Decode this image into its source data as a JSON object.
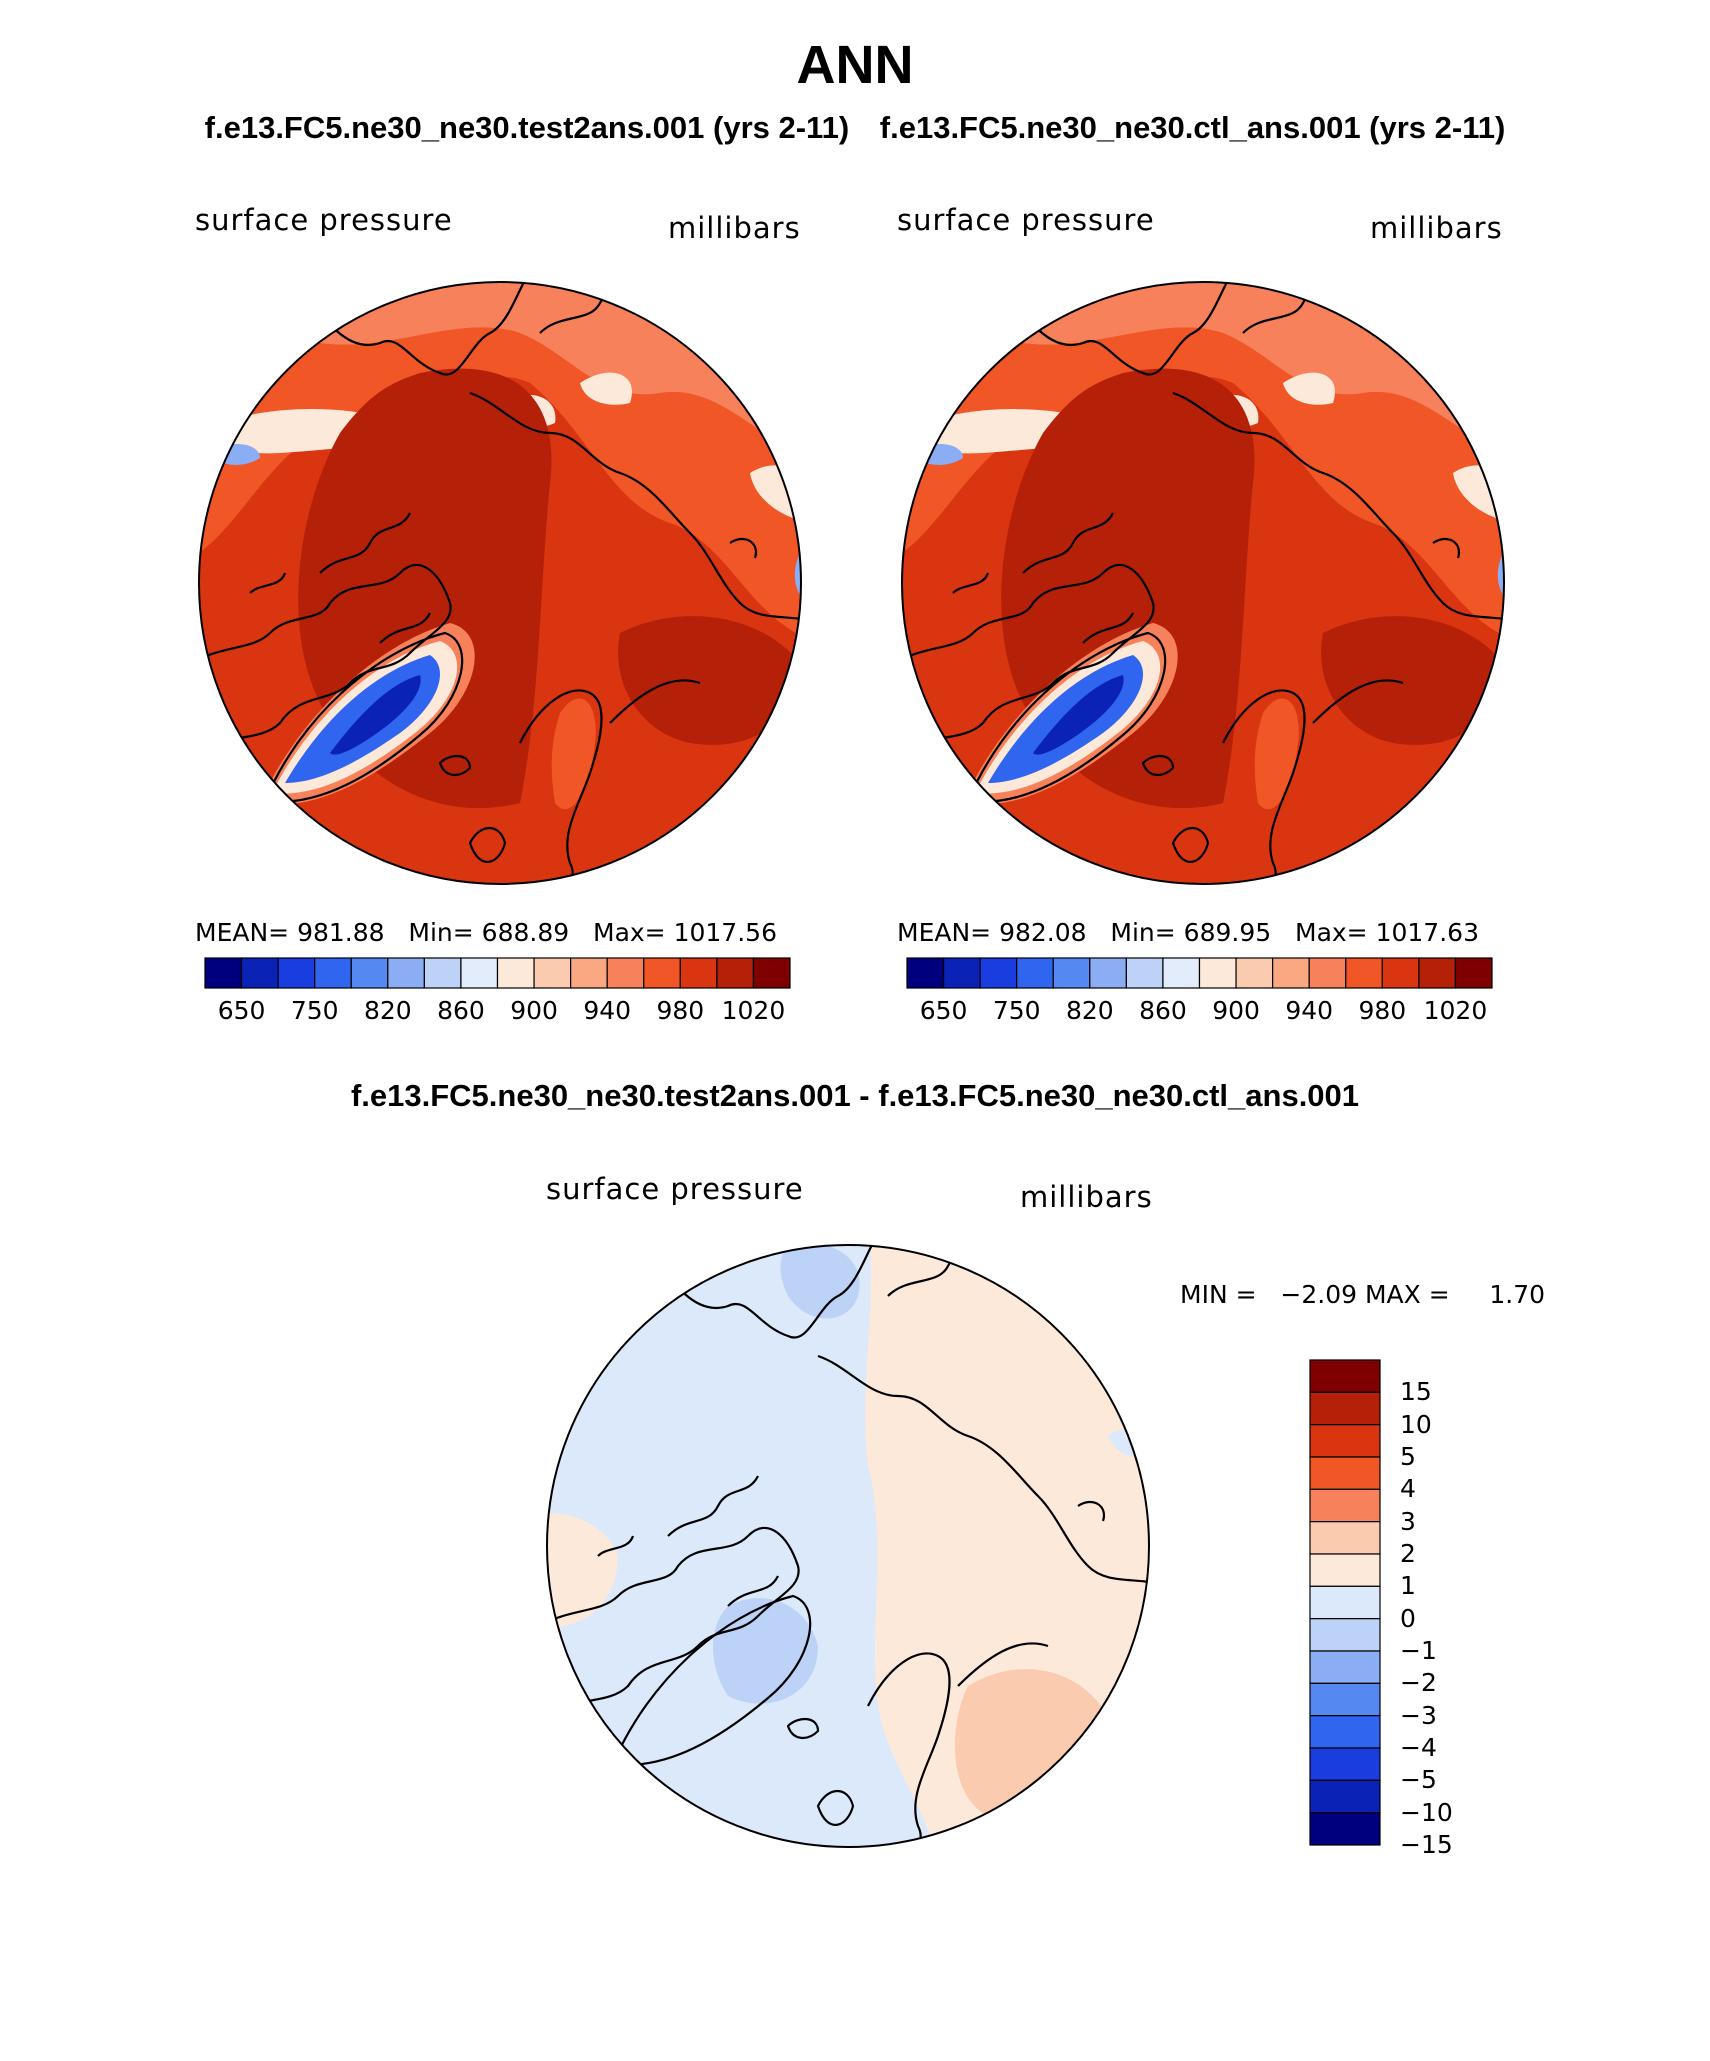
{
  "title": "ANN",
  "case_titles": {
    "test": "f.e13.FC5.ne30_ne30.test2ans.001 (yrs 2-11)",
    "control": "f.e13.FC5.ne30_ne30.ctl_ans.001 (yrs 2-11)"
  },
  "panels": [
    {
      "variable": "surface pressure",
      "units": "millibars",
      "stats": {
        "mean_label": "MEAN=",
        "mean": "981.88",
        "min_label": "Min=",
        "min": "688.89",
        "max_label": "Max=",
        "max": "1017.56"
      }
    },
    {
      "variable": "surface pressure",
      "units": "millibars",
      "stats": {
        "mean_label": "MEAN=",
        "mean": "982.08",
        "min_label": "Min=",
        "min": "689.95",
        "max_label": "Max=",
        "max": "1017.63"
      }
    }
  ],
  "abs_colorbar": {
    "colors": [
      "#00007f",
      "#0a22b5",
      "#1a3de0",
      "#3065ef",
      "#5588f0",
      "#8aadf3",
      "#bcd3f7",
      "#e2ecfb",
      "#fde9da",
      "#fbcbb0",
      "#f9a882",
      "#f7815a",
      "#f05626",
      "#d93510",
      "#b52008",
      "#7f0000"
    ],
    "tick_labels": [
      "650",
      "750",
      "820",
      "860",
      "900",
      "940",
      "980",
      "1020"
    ]
  },
  "difference": {
    "title": "f.e13.FC5.ne30_ne30.test2ans.001 - f.e13.FC5.ne30_ne30.ctl_ans.001",
    "variable": "surface pressure",
    "units": "millibars",
    "stats": {
      "min_label": "MIN =",
      "min": "−2.09",
      "max_label": "MAX =",
      "max": "1.70"
    },
    "colorbar": {
      "colors_top_to_bottom": [
        "#7f0000",
        "#b52008",
        "#d93510",
        "#f05626",
        "#f7815a",
        "#fbcbb0",
        "#fde9da",
        "#dbe9fa",
        "#bcd3f7",
        "#8aadf3",
        "#5588f0",
        "#3065ef",
        "#1a3de0",
        "#0a22b5",
        "#00007f"
      ],
      "tick_labels": [
        "15",
        "10",
        "5",
        "4",
        "3",
        "2",
        "1",
        "0",
        "−1",
        "−2",
        "−3",
        "−4",
        "−5",
        "−10",
        "−15"
      ]
    }
  },
  "colors": {
    "high": "#b52008",
    "mid_high": "#d93510",
    "mid": "#f05626",
    "low": "#f7815a",
    "greenland_dark": "#0a22b5",
    "greenland": "#3065ef",
    "diff_pos": "#fde9da",
    "diff_pos2": "#fbcbb0",
    "diff_neg": "#dbe9fa",
    "diff_neg2": "#bcd3f7",
    "coast": "#000000"
  }
}
